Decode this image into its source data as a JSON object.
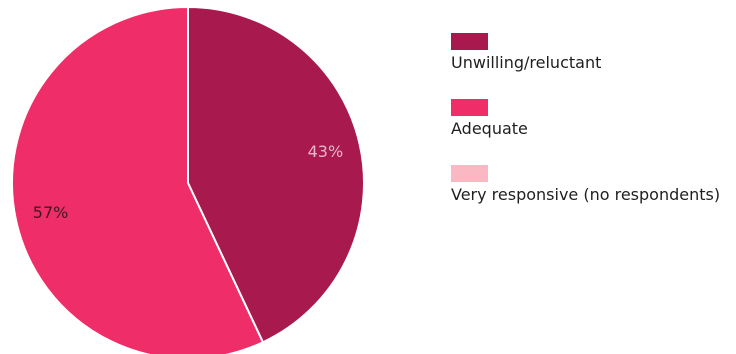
{
  "chart_data": {
    "type": "pie",
    "slices": [
      {
        "label": "Unwilling/reluctant",
        "value": 43,
        "value_label": "43%",
        "color": "#a8194d"
      },
      {
        "label": "Adequate",
        "value": 57,
        "value_label": "57%",
        "color": "#ef2d68"
      },
      {
        "label": "Very responsive (no respondents)",
        "value": 0,
        "value_label": "",
        "color": "#f9b8c2"
      }
    ],
    "start_angle": "12 o'clock",
    "direction": "clockwise",
    "legend_position": "right",
    "title": ""
  }
}
